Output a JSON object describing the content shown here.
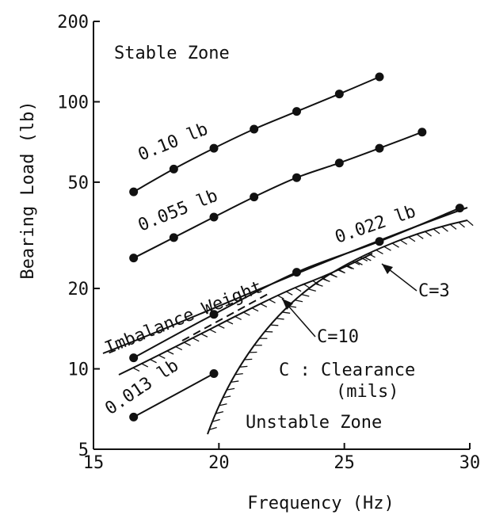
{
  "chart_data": {
    "type": "line",
    "xlabel": "Frequency (Hz)",
    "ylabel": "Bearing Load (lb)",
    "xlim": [
      15,
      30
    ],
    "ylim": [
      5,
      200
    ],
    "yscale": "log",
    "xticks": [
      "15",
      "20",
      "25",
      "30"
    ],
    "yticks": [
      "5",
      "10",
      "20",
      "50",
      "100",
      "200"
    ],
    "xtick_values": [
      15,
      20,
      25,
      30
    ],
    "ytick_values": [
      5,
      10,
      20,
      50,
      100,
      200
    ],
    "grid": false,
    "series": [
      {
        "name": "0.10 lb",
        "x": [
          16.6,
          18.2,
          19.8,
          21.4,
          23.1,
          24.8,
          26.4
        ],
        "y": [
          46,
          56,
          67,
          79,
          92,
          107,
          124
        ]
      },
      {
        "name": "0.055 lb",
        "x": [
          16.6,
          18.2,
          19.8,
          21.4,
          23.1,
          24.8,
          26.4,
          28.1
        ],
        "y": [
          26,
          31,
          37,
          44,
          52,
          59,
          67,
          77
        ]
      },
      {
        "name": "0.022 lb",
        "x": [
          16.6,
          19.8,
          23.1,
          26.4,
          29.6
        ],
        "y": [
          11.0,
          16.0,
          23.0,
          30.0,
          40.0
        ]
      },
      {
        "name": "0.013 lb",
        "x": [
          16.6,
          19.8
        ],
        "y": [
          6.6,
          9.6
        ]
      }
    ],
    "annotations": {
      "stable_zone": "Stable Zone",
      "unstable_zone": "Unstable Zone",
      "imbalance_weight": "Imbalance Weight",
      "c3": "C=3",
      "c10": "C=10",
      "clearance_line1": "C : Clearance",
      "clearance_line2": "(mils)"
    }
  }
}
